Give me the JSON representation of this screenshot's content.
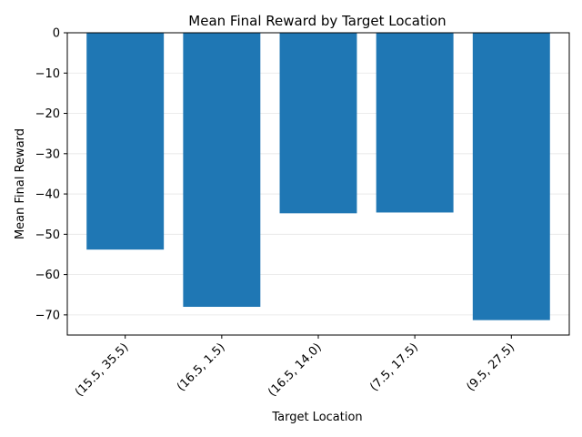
{
  "chart_data": {
    "type": "bar",
    "title": "Mean Final Reward by Target Location",
    "xlabel": "Target Location",
    "ylabel": "Mean Final Reward",
    "categories": [
      "(15.5, 35.5)",
      "(16.5, 1.5)",
      "(16.5, 14.0)",
      "(7.5, 17.5)",
      "(9.5, 27.5)"
    ],
    "values": [
      -53.8,
      -68.0,
      -44.8,
      -44.6,
      -71.3
    ],
    "ylim": [
      -75,
      0
    ],
    "yticks": [
      0,
      -10,
      -20,
      -30,
      -40,
      -50,
      -60,
      -70
    ],
    "ytick_labels": [
      "0",
      "−10",
      "−20",
      "−30",
      "−40",
      "−50",
      "−60",
      "−70"
    ],
    "grid": "horizontal",
    "bar_color": "#1f77b4",
    "grid_color": "#e6e6e6"
  }
}
